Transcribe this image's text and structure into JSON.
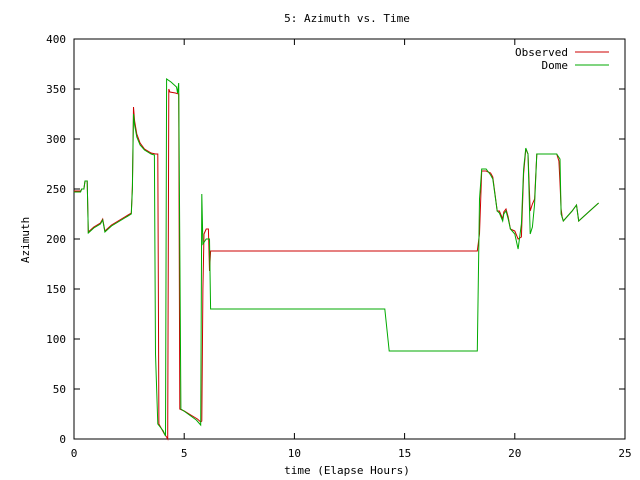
{
  "chart_data": {
    "type": "line",
    "title": "5: Azimuth vs. Time",
    "xlabel": "time (Elapse Hours)",
    "ylabel": "Azimuth",
    "xlim": [
      0,
      25
    ],
    "ylim": [
      0,
      400
    ],
    "xticks": [
      0,
      5,
      10,
      15,
      20,
      25
    ],
    "yticks": [
      0,
      50,
      100,
      150,
      200,
      250,
      300,
      350,
      400
    ],
    "grid": false,
    "legend_position": "top-right",
    "series": [
      {
        "name": "Observed",
        "color": "#cc0000",
        "points": [
          [
            0,
            248
          ],
          [
            0.3,
            248
          ],
          [
            0.35,
            250
          ],
          [
            0.45,
            250
          ],
          [
            0.5,
            258
          ],
          [
            0.6,
            258
          ],
          [
            0.65,
            207
          ],
          [
            0.9,
            212
          ],
          [
            1.2,
            216
          ],
          [
            1.3,
            220
          ],
          [
            1.4,
            208
          ],
          [
            1.5,
            210
          ],
          [
            1.7,
            214
          ],
          [
            2.0,
            218
          ],
          [
            2.3,
            222
          ],
          [
            2.6,
            226
          ],
          [
            2.65,
            253
          ],
          [
            2.7,
            332
          ],
          [
            2.75,
            318
          ],
          [
            2.85,
            305
          ],
          [
            3.0,
            296
          ],
          [
            3.2,
            290
          ],
          [
            3.5,
            286
          ],
          [
            3.7,
            285
          ],
          [
            3.8,
            285
          ],
          [
            3.85,
            15
          ],
          [
            4.1,
            5
          ],
          [
            4.2,
            2
          ],
          [
            4.25,
            0
          ],
          [
            4.3,
            350
          ],
          [
            4.35,
            347
          ],
          [
            4.6,
            346
          ],
          [
            4.75,
            345
          ],
          [
            4.8,
            30
          ],
          [
            5.0,
            28
          ],
          [
            5.3,
            24
          ],
          [
            5.6,
            20
          ],
          [
            5.75,
            17
          ],
          [
            5.8,
            18
          ],
          [
            5.85,
            150
          ],
          [
            5.9,
            205
          ],
          [
            6.0,
            210
          ],
          [
            6.1,
            210
          ],
          [
            6.15,
            168
          ],
          [
            6.2,
            188
          ],
          [
            6.3,
            188
          ],
          [
            10,
            188
          ],
          [
            15,
            188
          ],
          [
            18.3,
            188
          ],
          [
            18.4,
            205
          ],
          [
            18.5,
            268
          ],
          [
            18.7,
            268
          ],
          [
            18.9,
            266
          ],
          [
            19.0,
            262
          ],
          [
            19.2,
            228
          ],
          [
            19.3,
            228
          ],
          [
            19.45,
            220
          ],
          [
            19.5,
            227
          ],
          [
            19.6,
            230
          ],
          [
            19.7,
            222
          ],
          [
            19.8,
            210
          ],
          [
            20.0,
            208
          ],
          [
            20.15,
            200
          ],
          [
            20.3,
            202
          ],
          [
            20.4,
            265
          ],
          [
            20.5,
            290
          ],
          [
            20.6,
            285
          ],
          [
            20.7,
            228
          ],
          [
            20.8,
            235
          ],
          [
            20.9,
            240
          ],
          [
            21.0,
            285
          ],
          [
            21.5,
            285
          ],
          [
            21.9,
            285
          ],
          [
            22.0,
            278
          ],
          [
            22.05,
            256
          ],
          [
            22.1,
            230
          ],
          [
            22.15,
            222
          ],
          [
            22.2,
            218
          ],
          [
            22.6,
            228
          ],
          [
            22.8,
            234
          ],
          [
            22.9,
            218
          ],
          [
            23.1,
            222
          ],
          [
            23.4,
            228
          ],
          [
            23.8,
            236
          ]
        ]
      },
      {
        "name": "Dome",
        "color": "#00aa00",
        "points": [
          [
            0,
            247
          ],
          [
            0.3,
            247
          ],
          [
            0.35,
            250
          ],
          [
            0.45,
            250
          ],
          [
            0.5,
            258
          ],
          [
            0.6,
            258
          ],
          [
            0.65,
            206
          ],
          [
            0.9,
            211
          ],
          [
            1.2,
            215
          ],
          [
            1.3,
            219
          ],
          [
            1.4,
            207
          ],
          [
            1.5,
            209
          ],
          [
            1.7,
            213
          ],
          [
            2.0,
            217
          ],
          [
            2.3,
            221
          ],
          [
            2.6,
            225
          ],
          [
            2.65,
            250
          ],
          [
            2.7,
            325
          ],
          [
            2.75,
            314
          ],
          [
            2.85,
            302
          ],
          [
            3.0,
            294
          ],
          [
            3.2,
            289
          ],
          [
            3.5,
            285
          ],
          [
            3.65,
            284
          ],
          [
            3.7,
            85
          ],
          [
            3.8,
            15
          ],
          [
            4.05,
            8
          ],
          [
            4.15,
            3
          ],
          [
            4.2,
            360
          ],
          [
            4.4,
            357
          ],
          [
            4.65,
            352
          ],
          [
            4.7,
            346
          ],
          [
            4.75,
            356
          ],
          [
            4.85,
            30
          ],
          [
            5.05,
            27
          ],
          [
            5.3,
            23
          ],
          [
            5.55,
            19
          ],
          [
            5.75,
            14
          ],
          [
            5.8,
            245
          ],
          [
            5.85,
            195
          ],
          [
            6.0,
            200
          ],
          [
            6.15,
            200
          ],
          [
            6.2,
            130
          ],
          [
            10,
            130
          ],
          [
            14.1,
            130
          ],
          [
            14.3,
            88
          ],
          [
            17,
            88
          ],
          [
            18.3,
            88
          ],
          [
            18.4,
            240
          ],
          [
            18.5,
            270
          ],
          [
            18.7,
            270
          ],
          [
            18.9,
            264
          ],
          [
            19.0,
            260
          ],
          [
            19.2,
            228
          ],
          [
            19.3,
            226
          ],
          [
            19.45,
            218
          ],
          [
            19.5,
            225
          ],
          [
            19.6,
            228
          ],
          [
            19.7,
            220
          ],
          [
            19.8,
            210
          ],
          [
            20.0,
            205
          ],
          [
            20.15,
            190
          ],
          [
            20.3,
            215
          ],
          [
            20.4,
            270
          ],
          [
            20.5,
            291
          ],
          [
            20.6,
            285
          ],
          [
            20.7,
            205
          ],
          [
            20.8,
            212
          ],
          [
            20.9,
            235
          ],
          [
            21.0,
            285
          ],
          [
            21.5,
            285
          ],
          [
            21.9,
            285
          ],
          [
            22.05,
            280
          ],
          [
            22.1,
            225
          ],
          [
            22.2,
            218
          ],
          [
            22.6,
            228
          ],
          [
            22.8,
            234
          ],
          [
            22.9,
            218
          ],
          [
            23.1,
            222
          ],
          [
            23.4,
            228
          ],
          [
            23.8,
            236
          ]
        ]
      }
    ]
  }
}
